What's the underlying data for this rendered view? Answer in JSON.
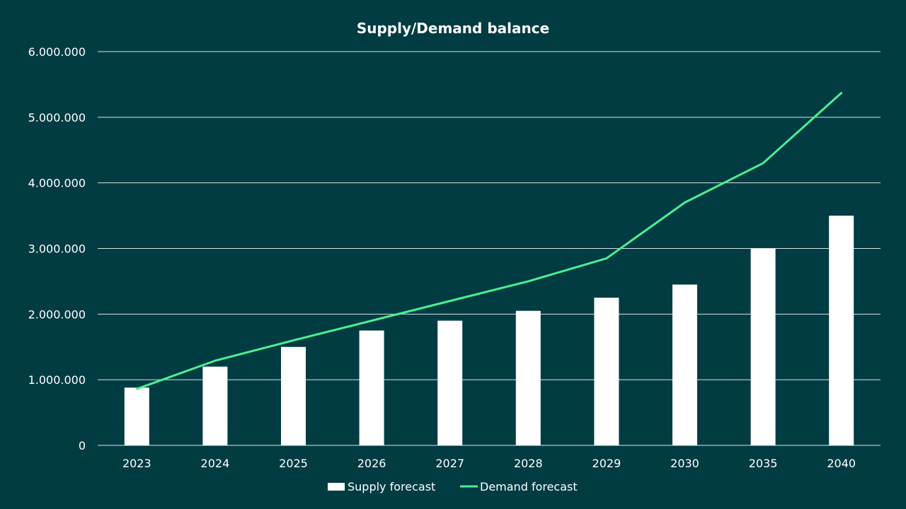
{
  "chart_data": {
    "type": "bar+line",
    "title": "Supply/Demand balance",
    "categories": [
      "2023",
      "2024",
      "2025",
      "2026",
      "2027",
      "2028",
      "2029",
      "2030",
      "2035",
      "2040"
    ],
    "series": [
      {
        "name": "Supply forecast",
        "type": "bar",
        "color": "#ffffff",
        "values": [
          880000,
          1200000,
          1500000,
          1750000,
          1900000,
          2050000,
          2250000,
          2450000,
          3000000,
          3500000
        ]
      },
      {
        "name": "Demand forecast",
        "type": "line",
        "color": "#4ded92",
        "values": [
          860000,
          1290000,
          1600000,
          1900000,
          2200000,
          2500000,
          2850000,
          3700000,
          4300000,
          5370000
        ]
      }
    ],
    "ylim": [
      0,
      6000000
    ],
    "yticks": [
      0,
      1000000,
      2000000,
      3000000,
      4000000,
      5000000,
      6000000
    ],
    "ytick_labels": [
      "0",
      "1.000.000",
      "2.000.000",
      "3.000.000",
      "4.000.000",
      "5.000.000",
      "6.000.000"
    ],
    "grid": true,
    "legend": "bottom",
    "background": "#013c43",
    "gridline_color": "#ffffff"
  }
}
